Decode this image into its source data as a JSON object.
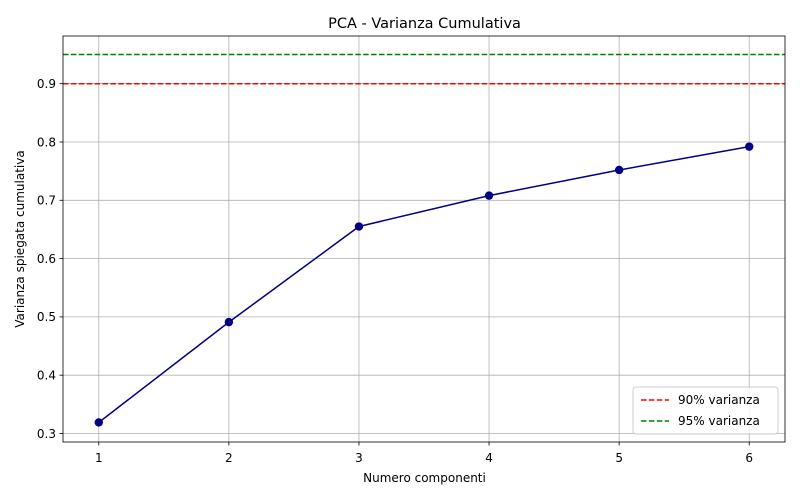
{
  "chart_data": {
    "type": "line",
    "title": "PCA - Varianza Cumulativa",
    "xlabel": "Numero componenti",
    "ylabel": "Varianza spiegata cumulativa",
    "x": [
      1,
      2,
      3,
      4,
      5,
      6
    ],
    "series": [
      {
        "values": [
          0.319,
          0.491,
          0.655,
          0.708,
          0.752,
          0.792
        ],
        "color": "#000080",
        "marker": "circle"
      }
    ],
    "reference_lines": [
      {
        "y": 0.9,
        "label": "90% varianza",
        "color": "#ff0000",
        "style": "dashed"
      },
      {
        "y": 0.95,
        "label": "95% varianza",
        "color": "#008000",
        "style": "dashed"
      }
    ],
    "xlim": [
      0.725,
      6.275
    ],
    "ylim": [
      0.2854,
      0.9818
    ],
    "xticks": [
      "1",
      "2",
      "3",
      "4",
      "5",
      "6"
    ],
    "yticks": [
      "0.3",
      "0.4",
      "0.5",
      "0.6",
      "0.7",
      "0.8",
      "0.9"
    ],
    "grid": true,
    "legend_position": "bottom-right"
  }
}
